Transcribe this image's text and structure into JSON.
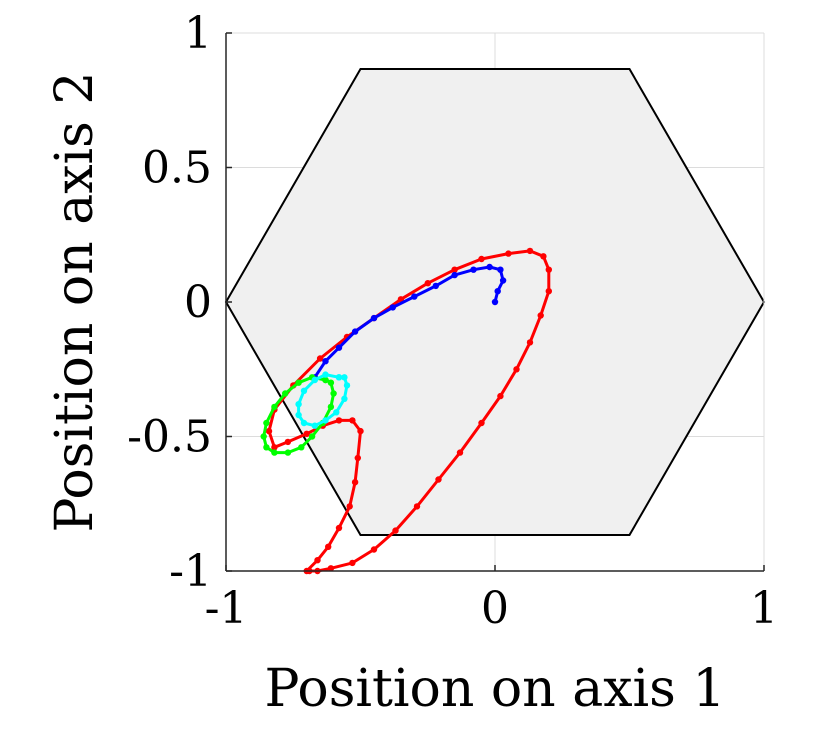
{
  "chart_data": {
    "type": "line",
    "xlabel": "Position on axis 1",
    "ylabel": "Position on axis 2",
    "xlim": [
      -1,
      1
    ],
    "ylim": [
      -1,
      1
    ],
    "xticks": [
      -1,
      0,
      1
    ],
    "yticks": [
      -1,
      -0.5,
      0,
      0.5,
      1
    ],
    "xtick_labels": [
      "-1",
      "0",
      "1"
    ],
    "ytick_labels": [
      "-1",
      "-0.5",
      "0",
      "0.5",
      "1"
    ],
    "grid": true,
    "region": {
      "shape": "hexagon",
      "fill": "#f0f0f0",
      "stroke": "#000000",
      "vertices": [
        [
          1,
          0
        ],
        [
          0.5,
          0.866
        ],
        [
          -0.5,
          0.866
        ],
        [
          -1,
          0
        ],
        [
          -0.5,
          -0.866
        ],
        [
          0.5,
          -0.866
        ]
      ]
    },
    "series": [
      {
        "color": "#ff0000",
        "points": [
          [
            -0.7,
            -1.0
          ],
          [
            -0.66,
            -0.96
          ],
          [
            -0.62,
            -0.91
          ],
          [
            -0.58,
            -0.84
          ],
          [
            -0.54,
            -0.76
          ],
          [
            -0.52,
            -0.67
          ],
          [
            -0.51,
            -0.58
          ],
          [
            -0.5,
            -0.48
          ],
          [
            -0.53,
            -0.44
          ],
          [
            -0.58,
            -0.44
          ],
          [
            -0.64,
            -0.46
          ],
          [
            -0.7,
            -0.49
          ],
          [
            -0.77,
            -0.52
          ],
          [
            -0.82,
            -0.54
          ],
          [
            -0.84,
            -0.48
          ],
          [
            -0.82,
            -0.4
          ],
          [
            -0.75,
            -0.31
          ],
          [
            -0.65,
            -0.21
          ],
          [
            -0.55,
            -0.13
          ],
          [
            -0.45,
            -0.06
          ],
          [
            -0.35,
            0.01
          ],
          [
            -0.25,
            0.07
          ],
          [
            -0.15,
            0.12
          ],
          [
            -0.05,
            0.16
          ],
          [
            0.05,
            0.18
          ],
          [
            0.13,
            0.19
          ],
          [
            0.18,
            0.17
          ],
          [
            0.2,
            0.12
          ],
          [
            0.2,
            0.04
          ],
          [
            0.17,
            -0.05
          ],
          [
            0.13,
            -0.15
          ],
          [
            0.08,
            -0.25
          ],
          [
            0.02,
            -0.35
          ],
          [
            -0.05,
            -0.45
          ],
          [
            -0.13,
            -0.56
          ],
          [
            -0.21,
            -0.66
          ],
          [
            -0.29,
            -0.76
          ],
          [
            -0.37,
            -0.85
          ],
          [
            -0.45,
            -0.92
          ],
          [
            -0.53,
            -0.97
          ],
          [
            -0.61,
            -0.99
          ],
          [
            -0.66,
            -1.0
          ],
          [
            -0.69,
            -1.0
          ]
        ]
      },
      {
        "color": "#0000ff",
        "points": [
          [
            0.0,
            0.0
          ],
          [
            0.01,
            0.04
          ],
          [
            0.03,
            0.08
          ],
          [
            0.02,
            0.12
          ],
          [
            -0.02,
            0.13
          ],
          [
            -0.08,
            0.12
          ],
          [
            -0.15,
            0.1
          ],
          [
            -0.22,
            0.06
          ],
          [
            -0.3,
            0.02
          ],
          [
            -0.38,
            -0.02
          ],
          [
            -0.45,
            -0.06
          ],
          [
            -0.52,
            -0.11
          ],
          [
            -0.58,
            -0.17
          ],
          [
            -0.63,
            -0.22
          ],
          [
            -0.67,
            -0.28
          ]
        ]
      },
      {
        "color": "#00ff00",
        "points": [
          [
            -0.63,
            -0.29
          ],
          [
            -0.68,
            -0.28
          ],
          [
            -0.73,
            -0.3
          ],
          [
            -0.78,
            -0.34
          ],
          [
            -0.82,
            -0.39
          ],
          [
            -0.85,
            -0.45
          ],
          [
            -0.86,
            -0.5
          ],
          [
            -0.85,
            -0.54
          ],
          [
            -0.82,
            -0.56
          ],
          [
            -0.77,
            -0.56
          ],
          [
            -0.72,
            -0.54
          ],
          [
            -0.68,
            -0.5
          ],
          [
            -0.64,
            -0.45
          ],
          [
            -0.61,
            -0.39
          ],
          [
            -0.6,
            -0.34
          ],
          [
            -0.61,
            -0.3
          ],
          [
            -0.63,
            -0.29
          ]
        ]
      },
      {
        "color": "#00ffff",
        "points": [
          [
            -0.58,
            -0.28
          ],
          [
            -0.63,
            -0.27
          ],
          [
            -0.67,
            -0.29
          ],
          [
            -0.71,
            -0.33
          ],
          [
            -0.73,
            -0.38
          ],
          [
            -0.73,
            -0.42
          ],
          [
            -0.71,
            -0.45
          ],
          [
            -0.67,
            -0.46
          ],
          [
            -0.63,
            -0.44
          ],
          [
            -0.59,
            -0.41
          ],
          [
            -0.56,
            -0.36
          ],
          [
            -0.55,
            -0.31
          ],
          [
            -0.56,
            -0.28
          ],
          [
            -0.58,
            -0.28
          ]
        ]
      }
    ]
  }
}
